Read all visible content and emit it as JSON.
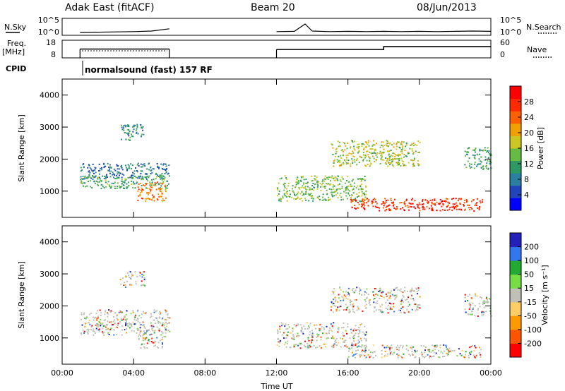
{
  "header": {
    "radar": "Adak East (fitACF)",
    "beam": "Beam 20",
    "date": "08/Jun/2013"
  },
  "chart_data": [
    {
      "type": "line",
      "panel": "noise",
      "ylabel_left": "N.Sky",
      "ylabel_right": "N.Search",
      "ticks_left": [
        "10^5",
        "10^0"
      ],
      "ticks_right": [
        "10^5",
        "10^0"
      ],
      "series": [
        {
          "name": "N.Sky",
          "x": [
            1.0,
            2.0,
            3.0,
            4.0,
            5.0,
            6.0,
            12.0,
            13.0,
            13.6,
            14.0,
            15.0,
            16.0,
            17.0,
            18.0,
            19.0,
            20.0,
            21.0,
            22.0,
            23.0,
            24.0
          ],
          "y": [
            0.5,
            0.6,
            0.7,
            0.8,
            1.0,
            1.8,
            0.8,
            0.9,
            3.5,
            1.0,
            0.8,
            0.9,
            0.8,
            0.9,
            0.8,
            0.9,
            0.8,
            0.9,
            1.0,
            0.9
          ]
        }
      ],
      "xlim": [
        0,
        24
      ]
    },
    {
      "type": "line",
      "panel": "frequency",
      "ylabel_left": "Freq.",
      "ylabel_left_unit": "[MHz]",
      "ylabel_right": "Nave",
      "ticks_left": [
        "18",
        "8"
      ],
      "ticks_right": [
        "60",
        "0"
      ],
      "series": [
        {
          "name": "Freq.",
          "x": [
            1.0,
            6.0
          ],
          "y": [
            13.0,
            13.0
          ]
        },
        {
          "name": "Nave",
          "x": [
            12.0,
            18.0,
            18.0,
            24.0
          ],
          "y": [
            28,
            28,
            41,
            41
          ]
        }
      ],
      "xlim": [
        0,
        24
      ]
    },
    {
      "type": "table",
      "panel": "cpid",
      "label": "CPID",
      "program": "normalsound (fast)",
      "id": "157 RF",
      "x_start": 1.0
    },
    {
      "type": "heatmap",
      "panel": "power",
      "xlabel": "",
      "ylabel": "Slant Range [km]",
      "xlim": [
        0,
        24
      ],
      "ylim": [
        180,
        4500
      ],
      "yticks": [
        1000,
        2000,
        3000,
        4000
      ],
      "colorbar": {
        "label": "Power [dB]",
        "ticks": [
          "4",
          "8",
          "12",
          "16",
          "20",
          "24",
          "28"
        ],
        "range": [
          0,
          30
        ]
      },
      "scatter_regions": [
        {
          "x": [
            1.0,
            6.0
          ],
          "range_km": [
            1400,
            1900
          ],
          "value": 6
        },
        {
          "x": [
            1.0,
            6.0
          ],
          "range_km": [
            1100,
            1500
          ],
          "value": 10
        },
        {
          "x": [
            3.2,
            4.6
          ],
          "range_km": [
            2600,
            3100
          ],
          "value": 8
        },
        {
          "x": [
            4.2,
            5.8
          ],
          "range_km": [
            700,
            1300
          ],
          "value": 20
        },
        {
          "x": [
            12.0,
            17.0
          ],
          "range_km": [
            700,
            1500
          ],
          "value": 12
        },
        {
          "x": [
            16.0,
            23.5
          ],
          "range_km": [
            400,
            800
          ],
          "value": 24
        },
        {
          "x": [
            15.0,
            20.0
          ],
          "range_km": [
            1800,
            2600
          ],
          "value": 14
        },
        {
          "x": [
            22.5,
            24.0
          ],
          "range_km": [
            1700,
            2400
          ],
          "value": 10
        }
      ]
    },
    {
      "type": "heatmap",
      "panel": "velocity",
      "xlabel": "Time UT",
      "ylabel": "Slant Range [km]",
      "xlim": [
        0,
        24
      ],
      "ylim": [
        180,
        4500
      ],
      "yticks": [
        1000,
        2000,
        3000,
        4000
      ],
      "xticks": [
        "00:00",
        "04:00",
        "08:00",
        "12:00",
        "16:00",
        "20:00",
        "00:00"
      ],
      "colorbar": {
        "label": "Velocity [m s⁻¹]",
        "ticks": [
          "200",
          "100",
          "50",
          "15",
          "-15",
          "-50",
          "-100",
          "-200"
        ],
        "range": [
          -250,
          250
        ]
      }
    }
  ],
  "colors": {
    "power_scale": [
      "#0000ff",
      "#2244bb",
      "#2b7fa0",
      "#2f9966",
      "#66bb44",
      "#ccc722",
      "#f0a000",
      "#ff6000",
      "#ff2a00",
      "#ff0000"
    ],
    "velocity_scale": [
      "#2222bb",
      "#3377ee",
      "#22aa33",
      "#77dd44",
      "#c0c0b8",
      "#ffcc66",
      "#ff9900",
      "#ff5500",
      "#ff0000"
    ]
  }
}
